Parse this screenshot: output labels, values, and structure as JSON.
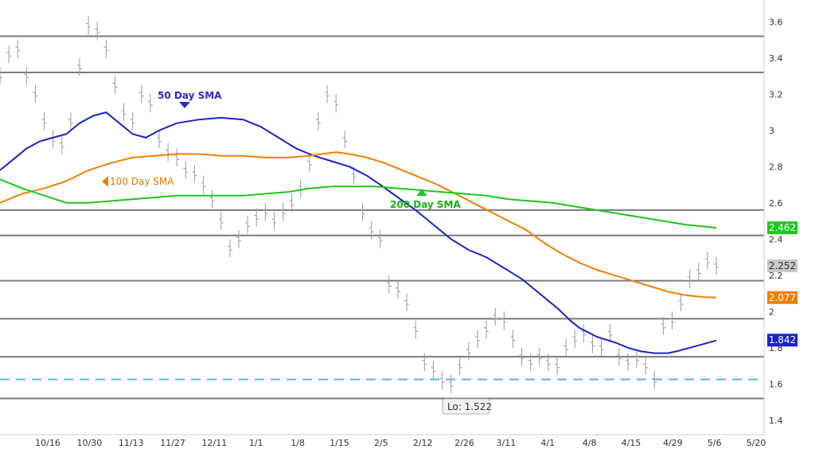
{
  "chart_data": {
    "type": "line",
    "x_labels": [
      "10/16",
      "10/30",
      "11/13",
      "11/27",
      "12/11",
      "1/1",
      "1/8",
      "1/15",
      "2/5",
      "2/12",
      "2/26",
      "3/11",
      "4/1",
      "4/8",
      "4/15",
      "4/29",
      "5/6",
      "5/20"
    ],
    "y_ticks": [
      1.4,
      1.6,
      1.8,
      2.0,
      2.2,
      2.4,
      2.6,
      2.8,
      3.0,
      3.2,
      3.4,
      3.6
    ],
    "y_tick_labels": [
      "1.4",
      "1.6",
      "1.8",
      "2",
      "2.2",
      "2.4",
      "2.6",
      "2.8",
      "3",
      "3.2",
      "3.4",
      "3.6"
    ],
    "ylim": [
      1.32,
      3.72
    ],
    "grid": false,
    "horizontal_levels": [
      3.52,
      3.32,
      2.56,
      2.42,
      2.17,
      1.96,
      1.75,
      1.52
    ],
    "support_dashed": 1.625,
    "series": [
      {
        "name": "50 Day SMA",
        "color": "#1c24c8",
        "points": [
          [
            0,
            2.78
          ],
          [
            6,
            2.84
          ],
          [
            12,
            2.9
          ],
          [
            18,
            2.94
          ],
          [
            24,
            2.96
          ],
          [
            30,
            2.98
          ],
          [
            36,
            3.04
          ],
          [
            42,
            3.08
          ],
          [
            48,
            3.1
          ],
          [
            54,
            3.04
          ],
          [
            60,
            2.98
          ],
          [
            66,
            2.96
          ],
          [
            72,
            3.0
          ],
          [
            80,
            3.04
          ],
          [
            90,
            3.06
          ],
          [
            100,
            3.07
          ],
          [
            110,
            3.06
          ],
          [
            118,
            3.02
          ],
          [
            126,
            2.96
          ],
          [
            134,
            2.9
          ],
          [
            142,
            2.86
          ],
          [
            150,
            2.83
          ],
          [
            158,
            2.8
          ],
          [
            166,
            2.75
          ],
          [
            172,
            2.7
          ],
          [
            180,
            2.63
          ],
          [
            188,
            2.56
          ],
          [
            196,
            2.48
          ],
          [
            204,
            2.4
          ],
          [
            212,
            2.34
          ],
          [
            220,
            2.3
          ],
          [
            228,
            2.24
          ],
          [
            236,
            2.18
          ],
          [
            244,
            2.1
          ],
          [
            252,
            2.02
          ],
          [
            258,
            1.95
          ],
          [
            262,
            1.91
          ],
          [
            270,
            1.86
          ],
          [
            278,
            1.83
          ],
          [
            284,
            1.8
          ],
          [
            290,
            1.78
          ],
          [
            296,
            1.77
          ],
          [
            302,
            1.77
          ],
          [
            306,
            1.78
          ],
          [
            312,
            1.8
          ],
          [
            318,
            1.82
          ],
          [
            324,
            1.84
          ]
        ],
        "end_label": "1.842"
      },
      {
        "name": "100  Day SMA",
        "color": "#f08000",
        "points": [
          [
            0,
            2.6
          ],
          [
            10,
            2.65
          ],
          [
            20,
            2.68
          ],
          [
            30,
            2.72
          ],
          [
            40,
            2.78
          ],
          [
            50,
            2.82
          ],
          [
            60,
            2.85
          ],
          [
            70,
            2.86
          ],
          [
            80,
            2.87
          ],
          [
            90,
            2.87
          ],
          [
            100,
            2.86
          ],
          [
            110,
            2.86
          ],
          [
            120,
            2.85
          ],
          [
            130,
            2.85
          ],
          [
            140,
            2.86
          ],
          [
            146,
            2.87
          ],
          [
            152,
            2.88
          ],
          [
            158,
            2.87
          ],
          [
            166,
            2.85
          ],
          [
            174,
            2.82
          ],
          [
            182,
            2.78
          ],
          [
            190,
            2.74
          ],
          [
            198,
            2.7
          ],
          [
            206,
            2.65
          ],
          [
            214,
            2.6
          ],
          [
            222,
            2.55
          ],
          [
            230,
            2.5
          ],
          [
            238,
            2.45
          ],
          [
            246,
            2.38
          ],
          [
            254,
            2.32
          ],
          [
            262,
            2.27
          ],
          [
            270,
            2.23
          ],
          [
            278,
            2.2
          ],
          [
            286,
            2.17
          ],
          [
            294,
            2.14
          ],
          [
            302,
            2.11
          ],
          [
            310,
            2.09
          ],
          [
            318,
            2.08
          ],
          [
            324,
            2.077
          ]
        ],
        "end_label": "2.077"
      },
      {
        "name": "200 Day SMA",
        "color": "#1cc81c",
        "points": [
          [
            0,
            2.73
          ],
          [
            10,
            2.68
          ],
          [
            20,
            2.64
          ],
          [
            30,
            2.6
          ],
          [
            40,
            2.6
          ],
          [
            50,
            2.61
          ],
          [
            60,
            2.62
          ],
          [
            70,
            2.63
          ],
          [
            80,
            2.64
          ],
          [
            90,
            2.64
          ],
          [
            100,
            2.64
          ],
          [
            110,
            2.64
          ],
          [
            120,
            2.65
          ],
          [
            130,
            2.66
          ],
          [
            140,
            2.68
          ],
          [
            150,
            2.69
          ],
          [
            160,
            2.69
          ],
          [
            170,
            2.69
          ],
          [
            180,
            2.68
          ],
          [
            190,
            2.67
          ],
          [
            200,
            2.66
          ],
          [
            210,
            2.65
          ],
          [
            220,
            2.64
          ],
          [
            230,
            2.62
          ],
          [
            240,
            2.61
          ],
          [
            250,
            2.6
          ],
          [
            260,
            2.58
          ],
          [
            270,
            2.56
          ],
          [
            280,
            2.54
          ],
          [
            290,
            2.52
          ],
          [
            300,
            2.5
          ],
          [
            310,
            2.48
          ],
          [
            318,
            2.47
          ],
          [
            324,
            2.462
          ]
        ],
        "end_label": "2.462"
      }
    ],
    "price_bars": [
      [
        0,
        3.3
      ],
      [
        4,
        3.42
      ],
      [
        8,
        3.45
      ],
      [
        12,
        3.3
      ],
      [
        16,
        3.2
      ],
      [
        20,
        3.05
      ],
      [
        24,
        2.95
      ],
      [
        28,
        2.92
      ],
      [
        32,
        3.05
      ],
      [
        36,
        3.35
      ],
      [
        40,
        3.58
      ],
      [
        44,
        3.55
      ],
      [
        48,
        3.45
      ],
      [
        52,
        3.25
      ],
      [
        56,
        3.1
      ],
      [
        60,
        3.05
      ],
      [
        64,
        3.2
      ],
      [
        68,
        3.15
      ],
      [
        72,
        2.95
      ],
      [
        76,
        2.88
      ],
      [
        80,
        2.85
      ],
      [
        84,
        2.78
      ],
      [
        88,
        2.76
      ],
      [
        92,
        2.7
      ],
      [
        96,
        2.62
      ],
      [
        100,
        2.5
      ],
      [
        104,
        2.35
      ],
      [
        108,
        2.4
      ],
      [
        112,
        2.48
      ],
      [
        116,
        2.52
      ],
      [
        120,
        2.55
      ],
      [
        124,
        2.5
      ],
      [
        128,
        2.55
      ],
      [
        132,
        2.6
      ],
      [
        136,
        2.68
      ],
      [
        140,
        2.82
      ],
      [
        144,
        3.05
      ],
      [
        148,
        3.2
      ],
      [
        152,
        3.15
      ],
      [
        156,
        2.95
      ],
      [
        160,
        2.75
      ],
      [
        164,
        2.55
      ],
      [
        168,
        2.45
      ],
      [
        172,
        2.4
      ],
      [
        176,
        2.15
      ],
      [
        180,
        2.12
      ],
      [
        184,
        2.05
      ],
      [
        188,
        1.9
      ],
      [
        192,
        1.72
      ],
      [
        196,
        1.68
      ],
      [
        200,
        1.62
      ],
      [
        204,
        1.6
      ],
      [
        208,
        1.7
      ],
      [
        212,
        1.78
      ],
      [
        216,
        1.85
      ],
      [
        220,
        1.9
      ],
      [
        224,
        1.97
      ],
      [
        228,
        1.95
      ],
      [
        232,
        1.85
      ],
      [
        236,
        1.75
      ],
      [
        240,
        1.72
      ],
      [
        244,
        1.75
      ],
      [
        248,
        1.72
      ],
      [
        252,
        1.7
      ],
      [
        256,
        1.8
      ],
      [
        260,
        1.85
      ],
      [
        264,
        1.88
      ],
      [
        268,
        1.82
      ],
      [
        272,
        1.8
      ],
      [
        276,
        1.88
      ],
      [
        280,
        1.75
      ],
      [
        284,
        1.72
      ],
      [
        288,
        1.74
      ],
      [
        292,
        1.7
      ],
      [
        296,
        1.62
      ],
      [
        300,
        1.92
      ],
      [
        304,
        1.95
      ],
      [
        308,
        2.05
      ],
      [
        312,
        2.18
      ],
      [
        316,
        2.22
      ],
      [
        320,
        2.28
      ],
      [
        324,
        2.252
      ]
    ],
    "last_price_label": "2.252",
    "annotations": {
      "sma50": "50 Day SMA",
      "sma100": "100  Day SMA",
      "sma200": "200 Day SMA",
      "low": "Lo: 1.522"
    },
    "colors": {
      "price": "#9a9a9a",
      "levels": "#7a7a7a",
      "dashed": "#5ab4e0",
      "axis": "#cfcfcf",
      "last_badge": "#c8c8c8"
    }
  }
}
